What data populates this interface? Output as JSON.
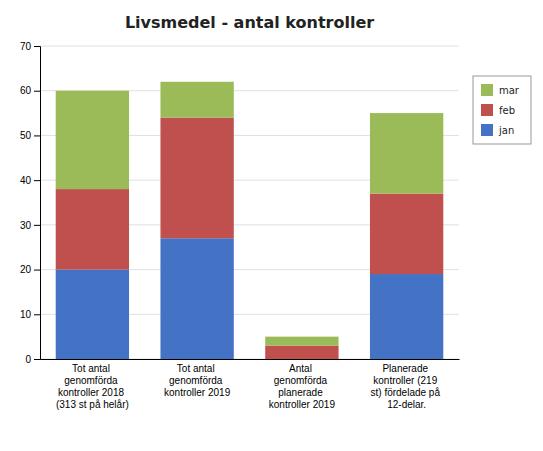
{
  "chart_data": {
    "type": "bar",
    "title": "Livsmedel - antal kontroller",
    "categories": [
      "Tot antal\ngenomförda\nkontroller 2018\n(313 st på helår)",
      "Tot antal\ngenomförda\nkontroller 2019",
      "Antal\ngenomförda\nplanerade\nkontroller 2019",
      "Planerade\nkontroller (219\nst) fördelade på\n12-delar."
    ],
    "series": [
      {
        "name": "jan",
        "color": "#4472c4",
        "values": [
          20,
          27,
          0,
          19
        ]
      },
      {
        "name": "feb",
        "color": "#c0504d",
        "values": [
          18,
          27,
          3,
          18
        ]
      },
      {
        "name": "mar",
        "color": "#9bbb59",
        "values": [
          22,
          8,
          2,
          18
        ]
      }
    ],
    "stacked": true,
    "ylim": [
      0,
      70
    ],
    "yticks": [
      0,
      10,
      20,
      30,
      40,
      50,
      60,
      70
    ],
    "grid": true,
    "legend": "right"
  }
}
